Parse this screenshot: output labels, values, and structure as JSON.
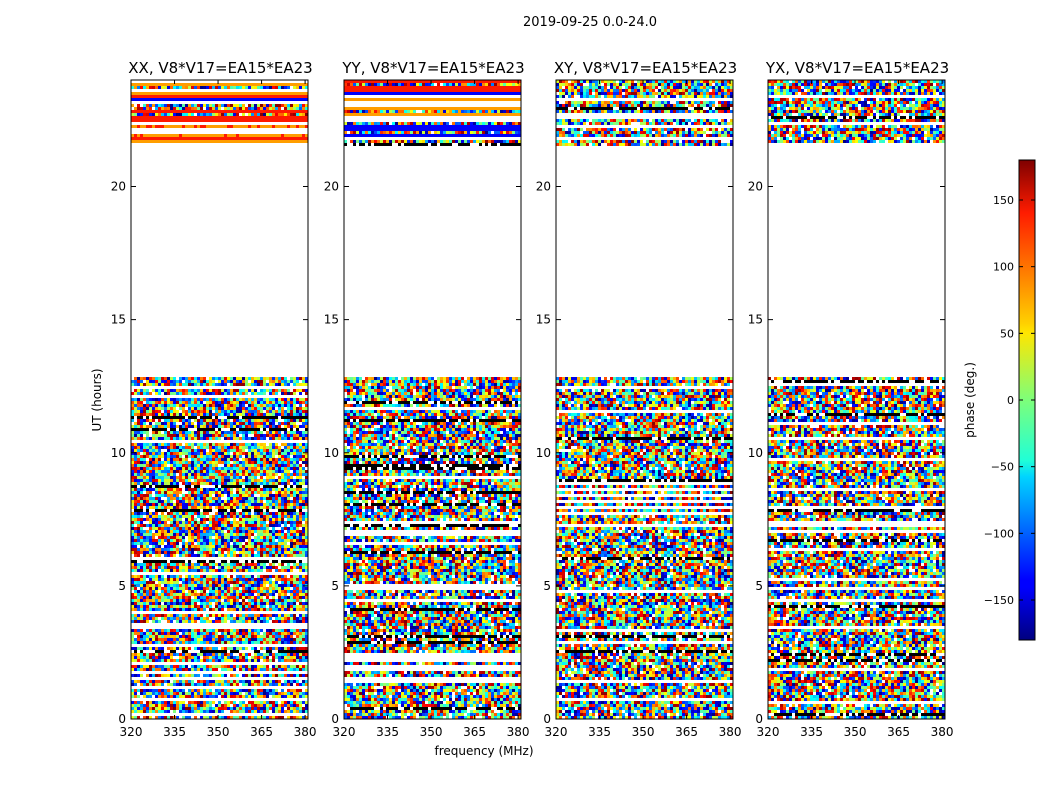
{
  "figure": {
    "suptitle": "2019-09-25 0.0-24.0",
    "xlabel": "frequency (MHz)",
    "ylabel": "UT (hours)"
  },
  "chart_data": {
    "type": "heatmap",
    "x_range": [
      320,
      381
    ],
    "y_range": [
      0,
      24
    ],
    "x_ticks": [
      320,
      335,
      350,
      365,
      380
    ],
    "y_ticks": [
      0,
      5,
      10,
      15,
      20
    ],
    "panels": [
      {
        "title": "XX, V8*V17=EA15*EA23"
      },
      {
        "title": "YY, V8*V17=EA15*EA23"
      },
      {
        "title": "XY, V8*V17=EA15*EA23"
      },
      {
        "title": "YX, V8*V17=EA15*EA23"
      }
    ],
    "colorbar": {
      "label": "phase (deg.)",
      "range": [
        -180,
        180
      ],
      "ticks": [
        -150,
        -100,
        -50,
        0,
        50,
        100,
        150
      ],
      "colormap": "jet"
    },
    "data_gap_hours": [
      12.85,
      21.55
    ]
  }
}
